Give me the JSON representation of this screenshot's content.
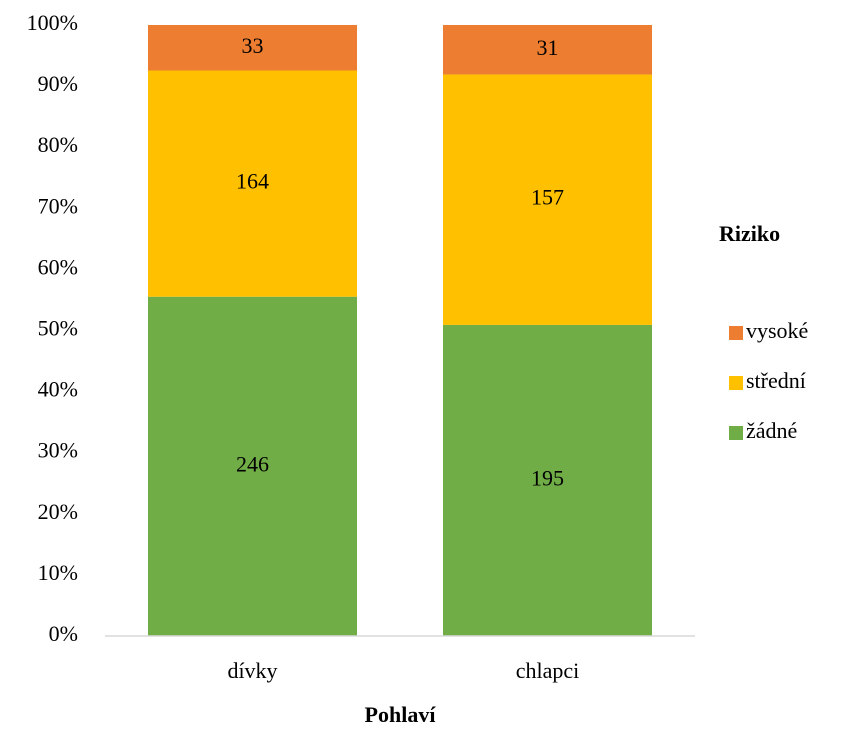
{
  "chart_data": {
    "type": "bar",
    "stacking": "percent",
    "categories": [
      "dívky",
      "chlapci"
    ],
    "series": [
      {
        "name": "žádné",
        "color": "#70ad47",
        "values": [
          246,
          195
        ]
      },
      {
        "name": "střední",
        "color": "#ffc000",
        "values": [
          164,
          157
        ]
      },
      {
        "name": "vysoké",
        "color": "#ed7d31",
        "values": [
          33,
          31
        ]
      }
    ],
    "ylim": [
      0,
      100
    ],
    "yticks": [
      {
        "value": 0,
        "label": "0%"
      },
      {
        "value": 10,
        "label": "10%"
      },
      {
        "value": 20,
        "label": "20%"
      },
      {
        "value": 30,
        "label": "30%"
      },
      {
        "value": 40,
        "label": "40%"
      },
      {
        "value": 50,
        "label": "50%"
      },
      {
        "value": 60,
        "label": "60%"
      },
      {
        "value": 70,
        "label": "70%"
      },
      {
        "value": 80,
        "label": "80%"
      },
      {
        "value": 90,
        "label": "90%"
      },
      {
        "value": 100,
        "label": "100%"
      }
    ],
    "xlabel": "Pohlaví",
    "legend_title": "Riziko",
    "legend_position": "right",
    "grid": false
  }
}
